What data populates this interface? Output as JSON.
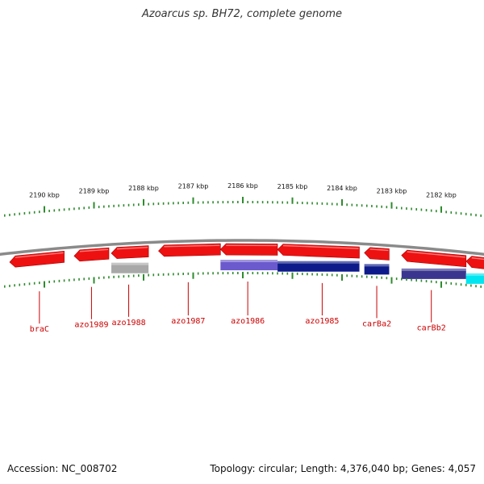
{
  "title": "Azoarcus sp. BH72, complete genome",
  "footer": {
    "accession": "Accession: NC_008702",
    "summary": "Topology: circular; Length: 4,376,040 bp; Genes: 4,057"
  },
  "colors": {
    "backbone": "#8a8a8a",
    "tick": "#2e8b2e",
    "gene": "#ee1111",
    "label": "#cc0000",
    "feature_light_blue": "#6a5acd",
    "feature_dark_blue": "#0d1b8a",
    "feature_grey": "#a8a8a8",
    "feature_cyan": "#00e5f0"
  },
  "chart_data": {
    "type": "genome-map",
    "scale_unit": "kbp",
    "scale_labels": [
      {
        "kbp": 2190,
        "label": "2190 kbp"
      },
      {
        "kbp": 2189,
        "label": "2189 kbp"
      },
      {
        "kbp": 2188,
        "label": "2188 kbp"
      },
      {
        "kbp": 2187,
        "label": "2187 kbp"
      },
      {
        "kbp": 2186,
        "label": "2186 kbp"
      },
      {
        "kbp": 2185,
        "label": "2185 kbp"
      },
      {
        "kbp": 2184,
        "label": "2184 kbp"
      },
      {
        "kbp": 2183,
        "label": "2183 kbp"
      },
      {
        "kbp": 2182,
        "label": "2182 kbp"
      }
    ],
    "genes": [
      {
        "name": "braC",
        "start": 2190.7,
        "end": 2189.6,
        "strand": "-"
      },
      {
        "name": "azo1989",
        "start": 2189.4,
        "end": 2188.7,
        "strand": "-"
      },
      {
        "name": "azo1988",
        "start": 2188.65,
        "end": 2187.9,
        "strand": "-"
      },
      {
        "name": "azo1987",
        "start": 2187.7,
        "end": 2186.45,
        "strand": "-"
      },
      {
        "name": "azo1986",
        "start": 2186.45,
        "end": 2185.3,
        "strand": "-"
      },
      {
        "name": "azo1985",
        "start": 2185.3,
        "end": 2183.65,
        "strand": "-"
      },
      {
        "name": "carBa2",
        "start": 2183.55,
        "end": 2183.05,
        "strand": "-"
      },
      {
        "name": "carBb2",
        "start": 2182.8,
        "end": 2181.5,
        "strand": "-"
      },
      {
        "name": "",
        "start": 2181.5,
        "end": 2180.9,
        "strand": "-"
      }
    ],
    "features": [
      {
        "start": 2188.65,
        "end": 2187.9,
        "color": "#a8a8a8"
      },
      {
        "start": 2186.45,
        "end": 2185.3,
        "color": "#6a5acd"
      },
      {
        "start": 2185.3,
        "end": 2183.65,
        "color": "#0d1b8a"
      },
      {
        "start": 2183.55,
        "end": 2183.05,
        "color": "#0d1b8a"
      },
      {
        "start": 2182.8,
        "end": 2181.5,
        "color": "#3a3690"
      },
      {
        "start": 2181.5,
        "end": 2180.9,
        "color": "#00e5f0"
      }
    ],
    "gene_labels": [
      {
        "name": "braC",
        "kbp": 2190.1
      },
      {
        "name": "azo1989",
        "kbp": 2189.05
      },
      {
        "name": "azo1988",
        "kbp": 2188.3
      },
      {
        "name": "azo1987",
        "kbp": 2187.1
      },
      {
        "name": "azo1986",
        "kbp": 2185.9
      },
      {
        "name": "azo1985",
        "kbp": 2184.4
      },
      {
        "name": "carBa2",
        "kbp": 2183.3
      },
      {
        "name": "carBb2",
        "kbp": 2182.2
      }
    ]
  }
}
